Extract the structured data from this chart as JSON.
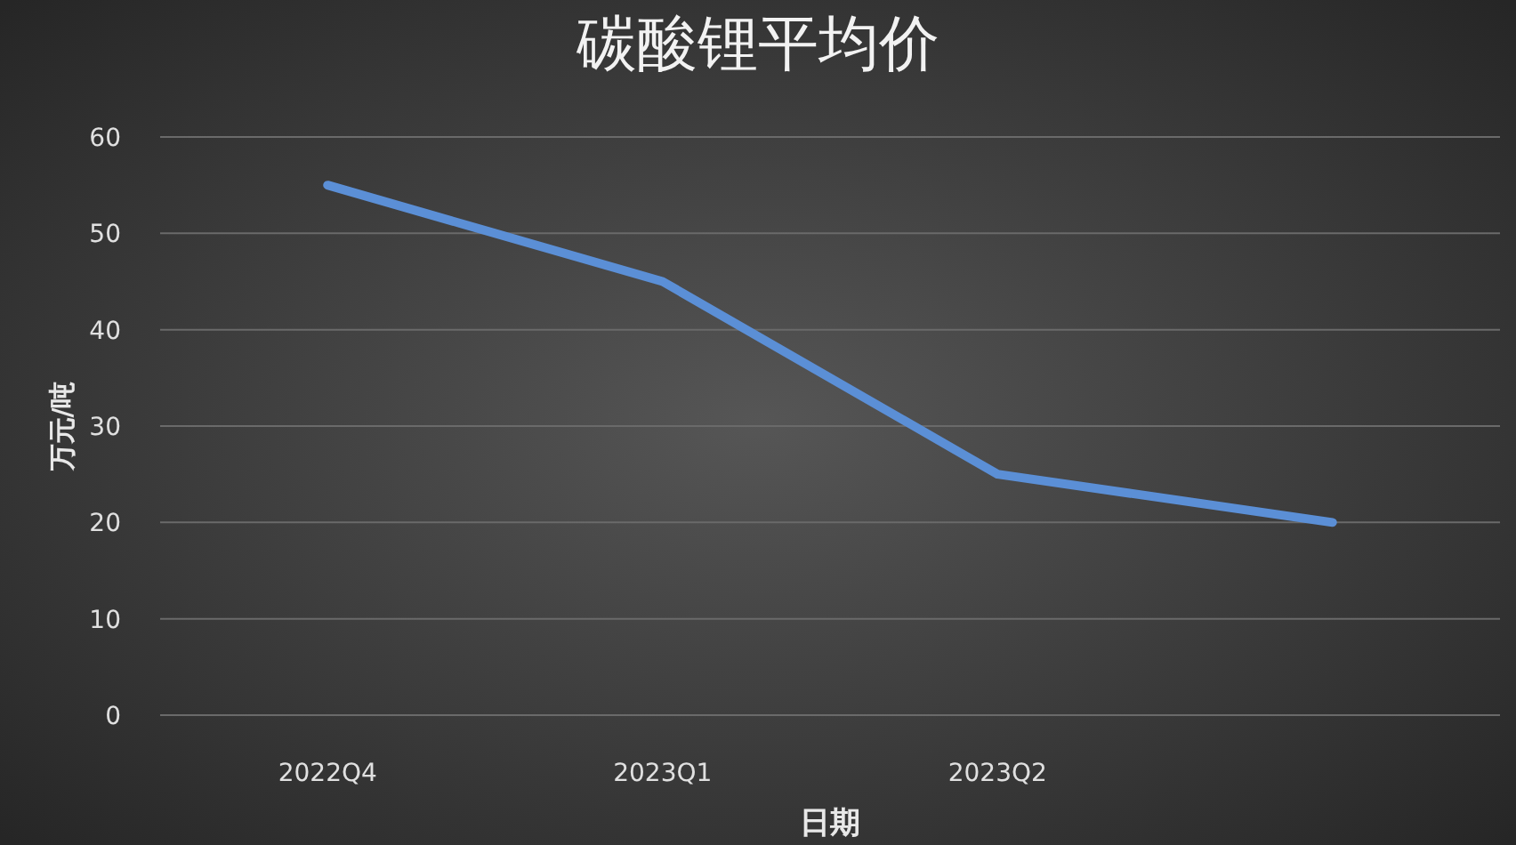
{
  "chart_data": {
    "type": "line",
    "title": "碳酸锂平均价",
    "xlabel": "日期",
    "ylabel": "万元/吨",
    "categories": [
      "2022Q4",
      "2023Q1",
      "2023Q2",
      null
    ],
    "series": [
      {
        "color": "#5b8fd6",
        "values": [
          55,
          45,
          25,
          20
        ]
      }
    ],
    "ylim": [
      0,
      60
    ],
    "yticks": [
      0,
      10,
      20,
      30,
      40,
      50,
      60
    ],
    "grid": "y"
  }
}
